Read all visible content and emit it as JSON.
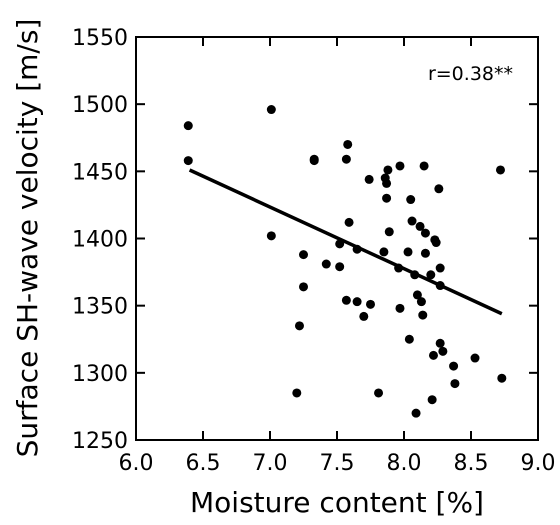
{
  "chart_data": {
    "type": "scatter",
    "xlabel": "Moisture content [%]",
    "ylabel": "Surface SH-wave velocity [m/s]",
    "xlim": [
      6.0,
      9.0
    ],
    "ylim": [
      1250,
      1550
    ],
    "xticks": [
      "6.0",
      "6.5",
      "7.0",
      "7.5",
      "8.0",
      "8.5",
      "9.0"
    ],
    "yticks": [
      "1250",
      "1300",
      "1350",
      "1400",
      "1450",
      "1500",
      "1550"
    ],
    "grid": false,
    "annotation": "r=0.38**",
    "regression_line": {
      "x": [
        6.4,
        8.73
      ],
      "y": [
        1451,
        1344
      ]
    },
    "points": [
      [
        6.39,
        1484
      ],
      [
        6.39,
        1458
      ],
      [
        7.01,
        1496
      ],
      [
        7.01,
        1402
      ],
      [
        7.22,
        1335
      ],
      [
        7.2,
        1285
      ],
      [
        7.25,
        1388
      ],
      [
        7.25,
        1364
      ],
      [
        7.33,
        1459
      ],
      [
        7.33,
        1458
      ],
      [
        7.42,
        1381
      ],
      [
        7.52,
        1396
      ],
      [
        7.52,
        1379
      ],
      [
        7.57,
        1459
      ],
      [
        7.58,
        1470
      ],
      [
        7.59,
        1412
      ],
      [
        7.57,
        1354
      ],
      [
        7.65,
        1392
      ],
      [
        7.65,
        1353
      ],
      [
        7.7,
        1342
      ],
      [
        7.75,
        1351
      ],
      [
        7.74,
        1444
      ],
      [
        7.81,
        1285
      ],
      [
        7.85,
        1390
      ],
      [
        7.86,
        1445
      ],
      [
        7.87,
        1441
      ],
      [
        7.87,
        1430
      ],
      [
        7.88,
        1451
      ],
      [
        7.89,
        1405
      ],
      [
        7.96,
        1378
      ],
      [
        7.97,
        1454
      ],
      [
        7.97,
        1348
      ],
      [
        8.03,
        1390
      ],
      [
        8.04,
        1325
      ],
      [
        8.05,
        1429
      ],
      [
        8.06,
        1413
      ],
      [
        8.08,
        1373
      ],
      [
        8.09,
        1270
      ],
      [
        8.1,
        1358
      ],
      [
        8.12,
        1409
      ],
      [
        8.13,
        1353
      ],
      [
        8.14,
        1343
      ],
      [
        8.15,
        1454
      ],
      [
        8.16,
        1404
      ],
      [
        8.16,
        1389
      ],
      [
        8.2,
        1373
      ],
      [
        8.21,
        1280
      ],
      [
        8.22,
        1313
      ],
      [
        8.23,
        1399
      ],
      [
        8.24,
        1397
      ],
      [
        8.26,
        1437
      ],
      [
        8.27,
        1378
      ],
      [
        8.27,
        1365
      ],
      [
        8.27,
        1322
      ],
      [
        8.29,
        1316
      ],
      [
        8.37,
        1305
      ],
      [
        8.38,
        1292
      ],
      [
        8.53,
        1311
      ],
      [
        8.72,
        1451
      ],
      [
        8.73,
        1296
      ]
    ]
  }
}
